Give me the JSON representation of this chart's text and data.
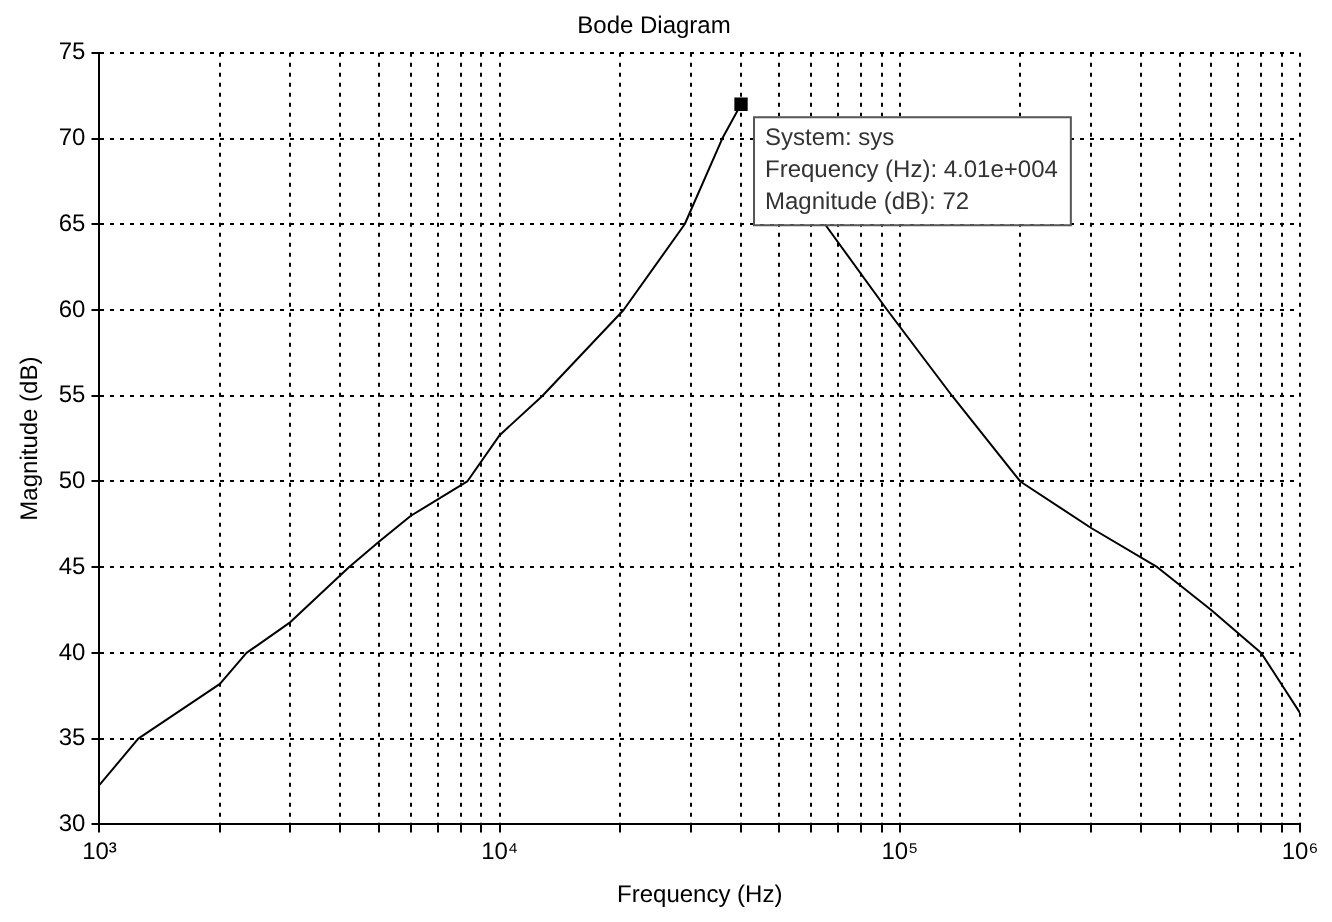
{
  "chart_data": {
    "type": "line",
    "title": "Bode Diagram",
    "xlabel": "Frequency (Hz)",
    "ylabel": "Magnitude (dB)",
    "log": "x",
    "grid": true,
    "legend": false,
    "line_style": "dotted",
    "xlim": [
      1000,
      1000000
    ],
    "xticks": [
      {
        "value": 1000,
        "label": "10³"
      },
      {
        "value": 2000,
        "label": null
      },
      {
        "value": 3000,
        "label": null
      },
      {
        "value": 4000,
        "label": null
      },
      {
        "value": 5000,
        "label": null
      },
      {
        "value": 6000,
        "label": null
      },
      {
        "value": 7000,
        "label": null
      },
      {
        "value": 8000,
        "label": null
      },
      {
        "value": 9000,
        "label": null
      },
      {
        "value": 10000,
        "label": "10⁴"
      },
      {
        "value": 20000,
        "label": null
      },
      {
        "value": 30000,
        "label": null
      },
      {
        "value": 40000,
        "label": null
      },
      {
        "value": 50000,
        "label": null
      },
      {
        "value": 60000,
        "label": null
      },
      {
        "value": 70000,
        "label": null
      },
      {
        "value": 80000,
        "label": null
      },
      {
        "value": 90000,
        "label": null
      },
      {
        "value": 100000,
        "label": "10⁵"
      },
      {
        "value": 200000,
        "label": null
      },
      {
        "value": 300000,
        "label": null
      },
      {
        "value": 400000,
        "label": null
      },
      {
        "value": 500000,
        "label": null
      },
      {
        "value": 600000,
        "label": null
      },
      {
        "value": 700000,
        "label": null
      },
      {
        "value": 800000,
        "label": null
      },
      {
        "value": 900000,
        "label": null
      },
      {
        "value": 1000000,
        "label": "10⁶"
      }
    ],
    "ylim": [
      30,
      75
    ],
    "yticks": [
      30,
      35,
      40,
      45,
      50,
      55,
      60,
      65,
      70,
      75
    ],
    "series": [
      {
        "type": "line",
        "color": "#000000",
        "marker": "none",
        "line_style": "solid",
        "x": [
          1000,
          1250,
          2000,
          2330,
          3000,
          4200,
          5000,
          6000,
          8300,
          10000,
          12800,
          20400,
          29000,
          36000,
          40100,
          45000,
          50000,
          65000,
          93000,
          135000,
          200000,
          300000,
          440000,
          600000,
          800000,
          1000000
        ],
        "values": [
          32.3,
          35,
          38.2,
          40,
          41.8,
          45,
          46.5,
          48,
          50,
          52.7,
          55,
          60,
          65,
          70,
          72,
          null,
          null,
          65,
          60,
          55,
          50,
          47.3,
          45,
          42.5,
          40,
          36.5
        ]
      },
      {
        "type": "scatter",
        "color": "#000000",
        "marker": "square",
        "x": [
          40100
        ],
        "values": [
          72
        ]
      }
    ],
    "annotations": [
      {
        "text": "System: sys\nFrequency (Hz): 4.01e+004\nMagnitude (dB): 72",
        "x": 40100,
        "y": 72
      }
    ]
  }
}
